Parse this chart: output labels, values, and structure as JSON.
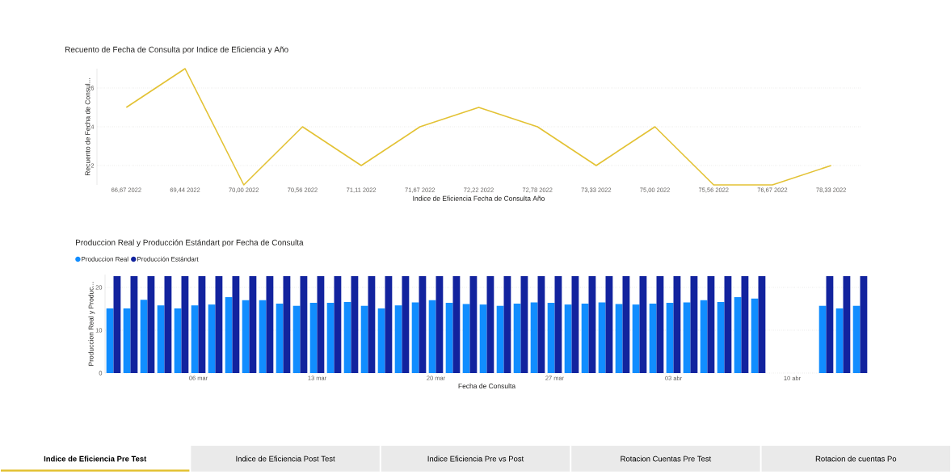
{
  "chart_data": [
    {
      "type": "line",
      "title": "Recuento de Fecha de Consulta por Indice de Eficiencia y Año",
      "xlabel": "Indice de Eficiencia Fecha de Consulta Año",
      "ylabel": "Recuento de Fecha de Consul...",
      "categories": [
        "66,67 2022",
        "69,44 2022",
        "70,00 2022",
        "70,56 2022",
        "71,11 2022",
        "71,67 2022",
        "72,22 2022",
        "72,78 2022",
        "73,33 2022",
        "75,00 2022",
        "75,56 2022",
        "76,67 2022",
        "78,33 2022"
      ],
      "series": [
        {
          "color": "#E3C234",
          "values": [
            5,
            7,
            1,
            4,
            2,
            4,
            5,
            4,
            2,
            4,
            1,
            1,
            2
          ]
        }
      ],
      "ylim": [
        1,
        7
      ],
      "yticks": [
        2,
        4,
        6
      ],
      "grid": "y",
      "marker": "none"
    },
    {
      "type": "bar",
      "title": "Produccion Real y Producción Estándart por Fecha de Consulta",
      "xlabel": "Fecha de Consulta",
      "ylabel": "Produccion Real y Produc...",
      "x": [
        "2022-03-01",
        "2022-03-02",
        "2022-03-03",
        "2022-03-04",
        "2022-03-05",
        "2022-03-06",
        "2022-03-07",
        "2022-03-08",
        "2022-03-09",
        "2022-03-10",
        "2022-03-11",
        "2022-03-12",
        "2022-03-13",
        "2022-03-14",
        "2022-03-15",
        "2022-03-16",
        "2022-03-17",
        "2022-03-18",
        "2022-03-19",
        "2022-03-20",
        "2022-03-21",
        "2022-03-22",
        "2022-03-23",
        "2022-03-24",
        "2022-03-25",
        "2022-03-26",
        "2022-03-27",
        "2022-03-28",
        "2022-03-29",
        "2022-03-30",
        "2022-03-31",
        "2022-04-01",
        "2022-04-02",
        "2022-04-03",
        "2022-04-04",
        "2022-04-05",
        "2022-04-06",
        "2022-04-07",
        "2022-04-08",
        "2022-04-09",
        "2022-04-10",
        "2022-04-11",
        "2022-04-12",
        "2022-04-13",
        "2022-04-14"
      ],
      "series": [
        {
          "name": "Produccion Real",
          "color": "#118DFF",
          "values": [
            15.1,
            15.1,
            17.1,
            15.8,
            15.1,
            15.8,
            16.0,
            17.7,
            17.0,
            17.0,
            16.2,
            15.7,
            16.4,
            16.4,
            16.6,
            15.7,
            15.1,
            15.8,
            16.5,
            17.0,
            16.4,
            16.1,
            16.0,
            15.7,
            16.2,
            16.5,
            16.4,
            16.0,
            16.2,
            16.5,
            16.1,
            16.0,
            16.2,
            16.4,
            16.5,
            17.0,
            16.6,
            17.7,
            17.4,
            null,
            null,
            null,
            15.7,
            15.1,
            15.7
          ]
        },
        {
          "name": "Producción Estándart",
          "color": "#12239E",
          "values": [
            22.6,
            22.6,
            22.6,
            22.6,
            22.6,
            22.6,
            22.6,
            22.6,
            22.6,
            22.6,
            22.6,
            22.6,
            22.6,
            22.6,
            22.6,
            22.6,
            22.6,
            22.6,
            22.6,
            22.6,
            22.6,
            22.6,
            22.6,
            22.6,
            22.6,
            22.6,
            22.6,
            22.6,
            22.6,
            22.6,
            22.6,
            22.6,
            22.6,
            22.6,
            22.6,
            22.6,
            22.6,
            22.6,
            22.6,
            null,
            null,
            null,
            22.6,
            22.6,
            22.6
          ]
        }
      ],
      "xlim": [
        "2022-02-28T12:00",
        "2022-04-14T12:00"
      ],
      "xticks": [
        {
          "value": "2022-03-06",
          "label": "06 mar"
        },
        {
          "value": "2022-03-13",
          "label": "13 mar"
        },
        {
          "value": "2022-03-20",
          "label": "20 mar"
        },
        {
          "value": "2022-03-27",
          "label": "27 mar"
        },
        {
          "value": "2022-04-03",
          "label": "03 abr"
        },
        {
          "value": "2022-04-10",
          "label": "10 abr"
        }
      ],
      "ylim": [
        0,
        23
      ],
      "yticks": [
        0,
        10,
        20
      ],
      "grid": "y",
      "legend": "top left",
      "annotations": [
        "Indice de Eficiencia Pre Test",
        "Indice de Eficiencia Post Test",
        "Indice Eficiencia Pre vs Post",
        "Rotacion Cuentas Pre Test",
        "Rotacion de cuentas Po"
      ]
    }
  ]
}
